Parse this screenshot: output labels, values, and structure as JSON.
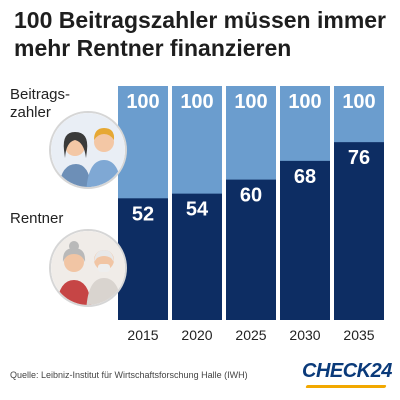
{
  "chart_data": {
    "type": "bar",
    "title": "100 Beitragszahler müssen immer mehr Rentner finanzieren",
    "categories": [
      "2015",
      "2020",
      "2025",
      "2030",
      "2035"
    ],
    "series": [
      {
        "name": "Beitrags-zahler",
        "values": [
          100,
          100,
          100,
          100,
          100
        ]
      },
      {
        "name": "Rentner",
        "values": [
          52,
          54,
          60,
          68,
          76
        ]
      }
    ],
    "ylim": [
      0,
      100
    ],
    "grid": false,
    "colors": {
      "payers": "#6b9dce",
      "retirees": "#0d2d63"
    }
  },
  "labels": {
    "payers_line1": "Beitrags-",
    "payers_line2": "zahler",
    "retirees": "Rentner"
  },
  "icons": {
    "payers": "young-people-icon",
    "retirees": "elderly-couple-icon"
  },
  "footer": {
    "source": "Quelle: Leibniz-Institut für Wirtschaftsforschung Halle (IWH)",
    "logo": "CHECK24"
  }
}
